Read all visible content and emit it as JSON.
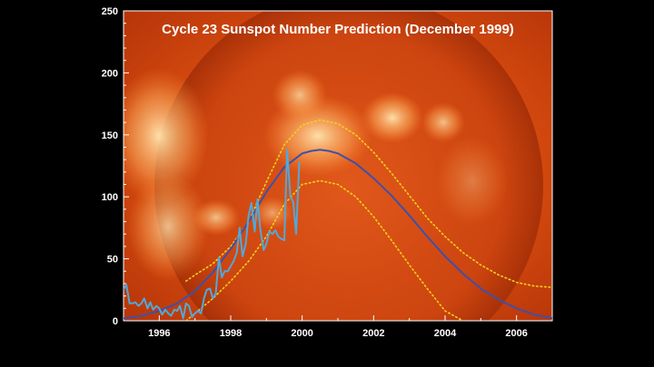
{
  "chart_data": {
    "type": "line",
    "title": "Cycle 23 Sunspot Number Prediction (December 1999)",
    "xlabel": "",
    "ylabel": "",
    "xlim": [
      1995,
      2007
    ],
    "ylim": [
      0,
      250
    ],
    "x_ticks": [
      1996,
      1998,
      2000,
      2002,
      2004,
      2006
    ],
    "y_ticks": [
      0,
      50,
      100,
      150,
      200,
      250
    ],
    "grid": false,
    "legend": "none",
    "colors": {
      "observed": "#52a8d8",
      "prediction": "#3f50a8",
      "bounds": "#f2d21a",
      "axis": "#ffffff",
      "background": "#d24a0c"
    },
    "series": [
      {
        "style": "observed",
        "x": [
          1995.0,
          1995.08,
          1995.17,
          1995.25,
          1995.33,
          1995.42,
          1995.5,
          1995.58,
          1995.67,
          1995.75,
          1995.83,
          1995.92,
          1996.0,
          1996.08,
          1996.17,
          1996.25,
          1996.33,
          1996.42,
          1996.5,
          1996.58,
          1996.67,
          1996.75,
          1996.83,
          1996.92,
          1997.0,
          1997.08,
          1997.17,
          1997.25,
          1997.33,
          1997.42,
          1997.5,
          1997.58,
          1997.67,
          1997.75,
          1997.83,
          1997.92,
          1998.0,
          1998.08,
          1998.17,
          1998.25,
          1998.33,
          1998.42,
          1998.5,
          1998.58,
          1998.67,
          1998.75,
          1998.83,
          1998.92,
          1999.0,
          1999.08,
          1999.17,
          1999.25,
          1999.33,
          1999.42,
          1999.5,
          1999.58,
          1999.67,
          1999.75,
          1999.83,
          1999.92
        ],
        "y": [
          25,
          29,
          14,
          14,
          15,
          12,
          14,
          18,
          10,
          15,
          9,
          12,
          10,
          5,
          9,
          6,
          4,
          9,
          8,
          12,
          2,
          14,
          12,
          3,
          6,
          8,
          6,
          18,
          25,
          26,
          18,
          22,
          51,
          35,
          40,
          40,
          44,
          48,
          55,
          75,
          52,
          62,
          85,
          95,
          72,
          98,
          74,
          57,
          62,
          72,
          70,
          73,
          68,
          66,
          65,
          138,
          100,
          96,
          70,
          128
        ]
      },
      {
        "style": "prediction",
        "x": [
          1995.0,
          1995.5,
          1996.0,
          1996.5,
          1997.0,
          1997.5,
          1998.0,
          1998.5,
          1999.0,
          1999.5,
          2000.0,
          2000.25,
          2000.5,
          2000.75,
          2001.0,
          2001.5,
          2002.0,
          2002.5,
          2003.0,
          2003.5,
          2004.0,
          2004.5,
          2005.0,
          2005.5,
          2006.0,
          2006.5,
          2007.0
        ],
        "y": [
          2,
          4,
          8,
          14,
          24,
          39,
          58,
          80,
          104,
          124,
          135,
          137,
          138,
          137,
          135,
          127,
          115,
          101,
          85,
          68,
          52,
          38,
          26,
          17,
          10,
          5,
          2
        ]
      },
      {
        "style": "bounds",
        "x": [
          1996.75,
          1997.0,
          1997.5,
          1998.0,
          1998.5,
          1999.0,
          1999.5,
          2000.0,
          2000.5,
          2001.0,
          2001.5,
          2002.0,
          2002.5,
          2003.0,
          2003.5,
          2004.0,
          2004.5,
          2005.0,
          2005.5,
          2006.0,
          2006.5,
          2007.0
        ],
        "y": [
          32,
          37,
          46,
          60,
          80,
          112,
          142,
          158,
          162,
          159,
          150,
          136,
          119,
          101,
          83,
          68,
          55,
          45,
          37,
          31,
          28,
          27
        ]
      },
      {
        "style": "bounds",
        "x": [
          1996.75,
          1997.0,
          1997.5,
          1998.0,
          1998.5,
          1999.0,
          1999.5,
          2000.0,
          2000.5,
          2001.0,
          2001.5,
          2002.0,
          2002.5,
          2003.0,
          2003.5,
          2004.0,
          2004.5
        ],
        "y": [
          0,
          6,
          18,
          32,
          48,
          68,
          94,
          110,
          113,
          110,
          100,
          84,
          65,
          45,
          26,
          8,
          0
        ]
      }
    ]
  }
}
